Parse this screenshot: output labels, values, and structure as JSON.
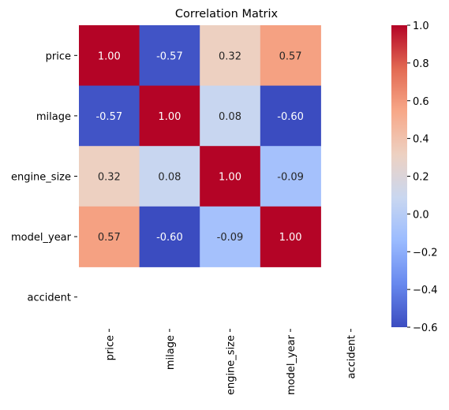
{
  "chart_data": {
    "type": "heatmap",
    "title": "Correlation Matrix",
    "rows": [
      "price",
      "milage",
      "engine_size",
      "model_year",
      "accident"
    ],
    "columns": [
      "price",
      "milage",
      "engine_size",
      "model_year",
      "accident"
    ],
    "values": [
      [
        1.0,
        -0.57,
        0.32,
        0.57,
        null
      ],
      [
        -0.57,
        1.0,
        0.08,
        -0.6,
        null
      ],
      [
        0.32,
        0.08,
        1.0,
        -0.09,
        null
      ],
      [
        0.57,
        -0.6,
        -0.09,
        1.0,
        null
      ],
      [
        null,
        null,
        null,
        null,
        null
      ]
    ],
    "cell_labels": [
      [
        "1.00",
        "-0.57",
        "0.32",
        "0.57",
        ""
      ],
      [
        "-0.57",
        "1.00",
        "0.08",
        "-0.60",
        ""
      ],
      [
        "0.32",
        "0.08",
        "1.00",
        "-0.09",
        ""
      ],
      [
        "0.57",
        "-0.60",
        "-0.09",
        "1.00",
        ""
      ],
      [
        "",
        "",
        "",
        "",
        ""
      ]
    ],
    "colormap": "coolwarm",
    "colormap_stops": [
      "#3b4cc0",
      "#6788ee",
      "#9abbff",
      "#c9d7f0",
      "#edd1c2",
      "#f7a889",
      "#e26952",
      "#b40426"
    ],
    "colorbar": {
      "range": [
        -0.6,
        1.0
      ],
      "ticks": [
        -0.6,
        -0.4,
        -0.2,
        0.0,
        0.2,
        0.4,
        0.6,
        0.8,
        1.0
      ],
      "tick_labels": [
        "−0.6",
        "−0.4",
        "−0.2",
        "0.0",
        "0.2",
        "0.4",
        "0.6",
        "0.8",
        "1.0"
      ]
    }
  }
}
